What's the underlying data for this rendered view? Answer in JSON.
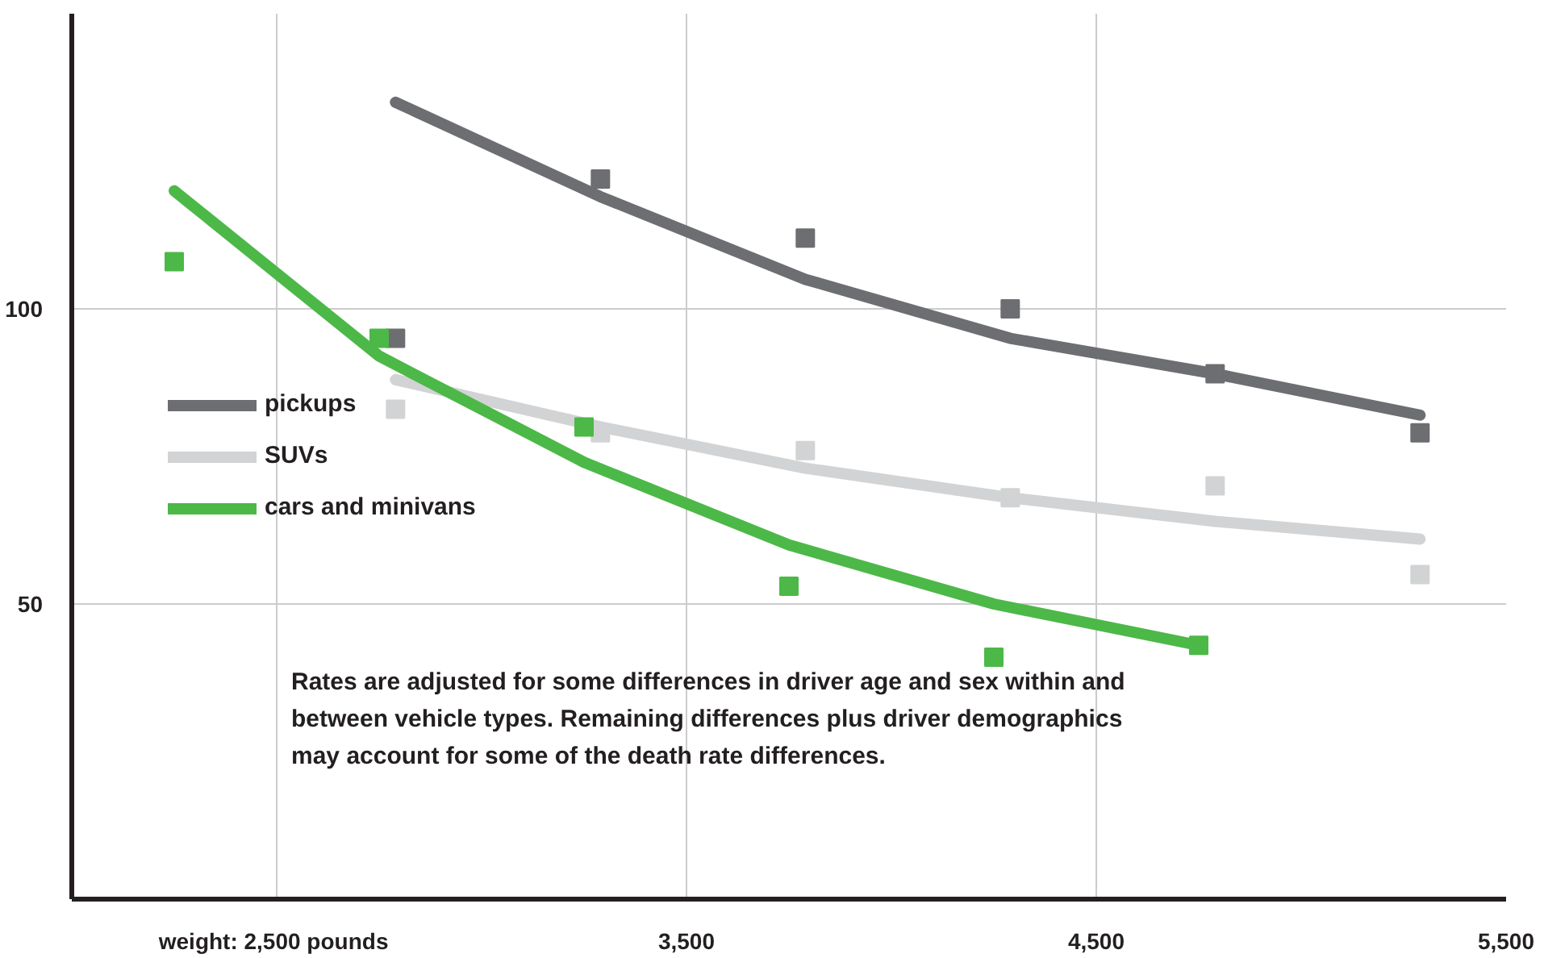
{
  "chart_data": {
    "type": "line",
    "xlim": [
      2000,
      5500
    ],
    "ylim": [
      0,
      150
    ],
    "xticks": [
      {
        "value": 2500,
        "label": "weight:  2,500 pounds"
      },
      {
        "value": 3500,
        "label": "3,500"
      },
      {
        "value": 4500,
        "label": "4,500"
      },
      {
        "value": 5500,
        "label": "5,500"
      }
    ],
    "yticks": [
      50,
      100
    ],
    "grid": true,
    "legend": "left",
    "marker": "none",
    "line_style": "solid",
    "series": [
      {
        "name": "pickups",
        "color": "#6d6e71",
        "x": [
          2790,
          3290,
          3790,
          4290,
          4790,
          5290
        ],
        "values": [
          135,
          119,
          105,
          95,
          89,
          82
        ]
      },
      {
        "name": "SUVs",
        "color": "#d1d3d4",
        "x": [
          2790,
          3290,
          3790,
          4290,
          4790,
          5290
        ],
        "values": [
          88,
          80,
          73,
          68,
          64,
          61
        ]
      },
      {
        "name": "cars and minivans",
        "color": "#4cb848",
        "x": [
          2250,
          2750,
          3250,
          3750,
          4250,
          4750
        ],
        "values": [
          120,
          92,
          74,
          60,
          50,
          43
        ]
      },
      {
        "type": "scatter",
        "marker": "square",
        "color": "#6d6e71",
        "x": [
          2790,
          3290,
          3790,
          4290,
          4790,
          5290
        ],
        "values": [
          95,
          122,
          112,
          100,
          89,
          79
        ]
      },
      {
        "type": "scatter",
        "marker": "square",
        "color": "#d1d3d4",
        "x": [
          2790,
          3290,
          3790,
          4290,
          4790,
          5290
        ],
        "values": [
          83,
          79,
          76,
          68,
          70,
          55
        ]
      },
      {
        "type": "scatter",
        "marker": "square",
        "color": "#4cb848",
        "x": [
          2250,
          2750,
          3250,
          3750,
          4250,
          4750
        ],
        "values": [
          108,
          95,
          80,
          53,
          41,
          43
        ]
      }
    ],
    "annotations": [
      "Rates are adjusted for some differences in driver age and sex within and\nbetween vehicle types. Remaining differences plus driver demographics\nmay account for some of the death rate differences."
    ]
  }
}
